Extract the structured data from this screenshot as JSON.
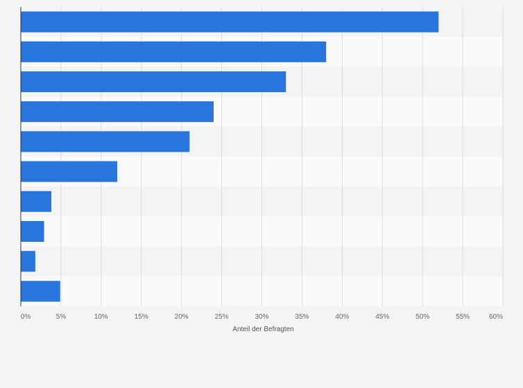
{
  "chart_data": {
    "type": "bar",
    "orientation": "horizontal",
    "categories": [
      "",
      "",
      "",
      "",
      "",
      "",
      "",
      "",
      "",
      ""
    ],
    "values": [
      52,
      38,
      33,
      24,
      21,
      12,
      3.8,
      2.9,
      1.8,
      4.9
    ],
    "xlabel": "Anteil der Befragten",
    "ylabel": "",
    "xlim": [
      0,
      60
    ],
    "x_ticks": [
      "0%",
      "5%",
      "10%",
      "15%",
      "20%",
      "25%",
      "30%",
      "35%",
      "40%",
      "45%",
      "50%",
      "55%",
      "60%"
    ],
    "grid": true,
    "bar_color": "#2876dd",
    "band_colors": [
      "#f4f4f4",
      "#fafafa"
    ],
    "gridline_color": "#dddddd",
    "axis_color": "#333333"
  }
}
